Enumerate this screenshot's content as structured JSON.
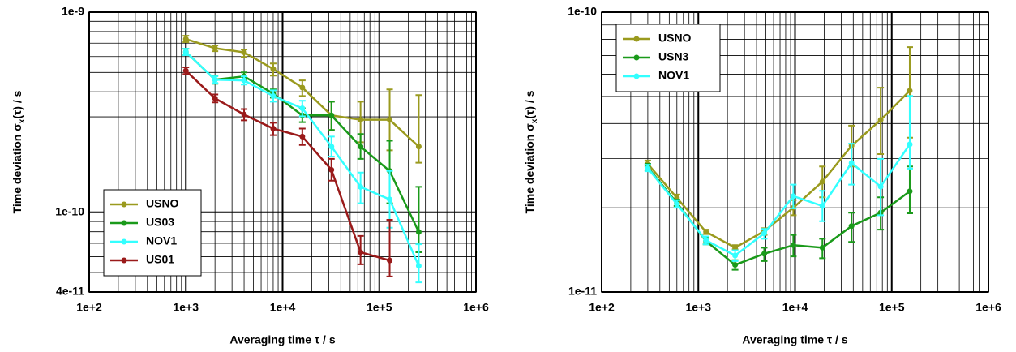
{
  "chart_data": [
    {
      "type": "line",
      "log_x": true,
      "log_y": true,
      "grid": true,
      "legend": "lower-left",
      "xlabel": "Averaging time τ / s",
      "ylabel": {
        "prefix": "Time deviation σ",
        "sub": "x",
        "suffix": "(τ) / s"
      },
      "xlim": [
        100,
        1000000
      ],
      "xticks": [
        {
          "value": 100,
          "label": "1e+2"
        },
        {
          "value": 1000,
          "label": "1e+3"
        },
        {
          "value": 10000,
          "label": "1e+4"
        },
        {
          "value": 100000,
          "label": "1e+5"
        },
        {
          "value": 1000000,
          "label": "1e+6"
        }
      ],
      "ylim": [
        4e-11,
        1e-09
      ],
      "yticks": [
        {
          "value": 4e-11,
          "label": "4e-11"
        },
        {
          "value": 1e-10,
          "label": "1e-10"
        },
        {
          "value": 1e-09,
          "label": "1e-9"
        }
      ],
      "x": [
        1000,
        2000,
        4000,
        8000,
        16000,
        32000,
        64000,
        128000,
        256000
      ],
      "series": [
        {
          "name": "USNO",
          "color": "#9a9a1e",
          "values": [
            7.34e-10,
            6.6e-10,
            6.3e-10,
            5.2e-10,
            4.2e-10,
            3.05e-10,
            2.9e-10,
            2.9e-10,
            2.13e-10
          ],
          "lower": [
            7.08e-10,
            6.38e-10,
            5.97e-10,
            4.82e-10,
            3.81e-10,
            2.58e-10,
            2.24e-10,
            2.04e-10,
            1.77e-10
          ],
          "upper": [
            7.62e-10,
            6.81e-10,
            6.5e-10,
            5.54e-10,
            4.56e-10,
            3.57e-10,
            3.57e-10,
            4.11e-10,
            3.85e-10
          ]
        },
        {
          "name": "US03",
          "color": "#1a9a1a",
          "values": [
            6.33e-10,
            4.6e-10,
            4.78e-10,
            3.92e-10,
            3.05e-10,
            3.05e-10,
            2.13e-10,
            1.61e-10,
            7.98e-11
          ],
          "lower": [
            6.1e-10,
            4.39e-10,
            4.56e-10,
            3.74e-10,
            2.82e-10,
            2.58e-10,
            1.85e-10,
            1.11e-10,
            6.32e-11
          ],
          "upper": [
            6.56e-10,
            4.82e-10,
            5e-10,
            4.11e-10,
            3.31e-10,
            3.57e-10,
            2.46e-10,
            2.28e-10,
            1.34e-10
          ]
        },
        {
          "name": "NOV1",
          "color": "#33ffff",
          "values": [
            6.33e-10,
            4.6e-10,
            4.56e-10,
            3.81e-10,
            3.31e-10,
            2.13e-10,
            1.34e-10,
            1.16e-10,
            5.4e-11
          ],
          "lower": [
            6.1e-10,
            4.43e-10,
            4.35e-10,
            3.57e-10,
            3.02e-10,
            1.9e-10,
            1.11e-10,
            8.38e-11,
            4.47e-11
          ],
          "upper": [
            6.56e-10,
            4.78e-10,
            4.78e-10,
            4.07e-10,
            3.61e-10,
            2.39e-10,
            1.58e-10,
            1.61e-10,
            6.93e-11
          ]
        },
        {
          "name": "US01",
          "color": "#9a1a1a",
          "values": [
            5.1e-10,
            3.71e-10,
            3.08e-10,
            2.62e-10,
            2.39e-10,
            1.63e-10,
            6.32e-11,
            5.75e-11,
            null
          ],
          "lower": [
            4.91e-10,
            3.54e-10,
            2.88e-10,
            2.43e-10,
            2.17e-10,
            1.44e-10,
            5.5e-11,
            4.78e-11,
            null
          ],
          "upper": [
            5.3e-10,
            3.88e-10,
            3.28e-10,
            2.8e-10,
            2.62e-10,
            1.85e-10,
            7.62e-11,
            9.18e-11,
            null
          ]
        }
      ]
    },
    {
      "type": "line",
      "log_x": true,
      "log_y": true,
      "grid": true,
      "legend": "upper-left",
      "xlabel": "Averaging time τ / s",
      "ylabel": {
        "prefix": "Time deviation σ",
        "sub": "x",
        "suffix": "(τ) / s"
      },
      "xlim": [
        100,
        1000000
      ],
      "xticks": [
        {
          "value": 100,
          "label": "1e+2"
        },
        {
          "value": 1000,
          "label": "1e+3"
        },
        {
          "value": 10000,
          "label": "1e+4"
        },
        {
          "value": 100000,
          "label": "1e+5"
        },
        {
          "value": 1000000,
          "label": "1e+6"
        }
      ],
      "ylim": [
        1e-11,
        1e-10
      ],
      "yticks": [
        {
          "value": 1e-11,
          "label": "1e-11"
        },
        {
          "value": 1e-10,
          "label": "1e-10"
        }
      ],
      "x": [
        300,
        600,
        1200,
        2400,
        4800,
        9600,
        19200,
        38400,
        76800,
        153600
      ],
      "series": [
        {
          "name": "USNO",
          "color": "#9a9a1e",
          "values": [
            2.87e-11,
            2.17e-11,
            1.64e-11,
            1.44e-11,
            1.65e-11,
            2e-11,
            2.48e-11,
            3.33e-11,
            4.12e-11,
            5.24e-11
          ],
          "lower": [
            2.81e-11,
            2.13e-11,
            1.61e-11,
            1.42e-11,
            1.6e-11,
            1.88e-11,
            2.18e-11,
            2.81e-11,
            3.11e-11,
            3.56e-11
          ],
          "upper": [
            2.95e-11,
            2.23e-11,
            1.67e-11,
            1.47e-11,
            1.69e-11,
            2.13e-11,
            2.81e-11,
            3.93e-11,
            5.37e-11,
            7.5e-11
          ]
        },
        {
          "name": "USN3",
          "color": "#1a9a1a",
          "values": [
            2.79e-11,
            2.08e-11,
            1.52e-11,
            1.25e-11,
            1.37e-11,
            1.47e-11,
            1.44e-11,
            1.72e-11,
            1.92e-11,
            2.29e-11
          ],
          "lower": [
            2.72e-11,
            2.03e-11,
            1.48e-11,
            1.2e-11,
            1.29e-11,
            1.34e-11,
            1.32e-11,
            1.51e-11,
            1.67e-11,
            1.91e-11
          ],
          "upper": [
            2.87e-11,
            2.14e-11,
            1.56e-11,
            1.3e-11,
            1.44e-11,
            1.6e-11,
            1.55e-11,
            1.92e-11,
            2.18e-11,
            2.81e-11
          ]
        },
        {
          "name": "NOV1",
          "color": "#33ffff",
          "values": [
            2.77e-11,
            2.06e-11,
            1.53e-11,
            1.35e-11,
            1.62e-11,
            2.2e-11,
            2.03e-11,
            2.89e-11,
            2.38e-11,
            3.37e-11
          ],
          "lower": [
            2.7e-11,
            2e-11,
            1.48e-11,
            1.29e-11,
            1.55e-11,
            1.99e-11,
            1.79e-11,
            2.42e-11,
            1.88e-11,
            2.76e-11
          ],
          "upper": [
            2.85e-11,
            2.13e-11,
            1.58e-11,
            1.41e-11,
            1.68e-11,
            2.42e-11,
            2.3e-11,
            3.39e-11,
            2.99e-11,
            5.02e-11
          ]
        }
      ]
    }
  ]
}
